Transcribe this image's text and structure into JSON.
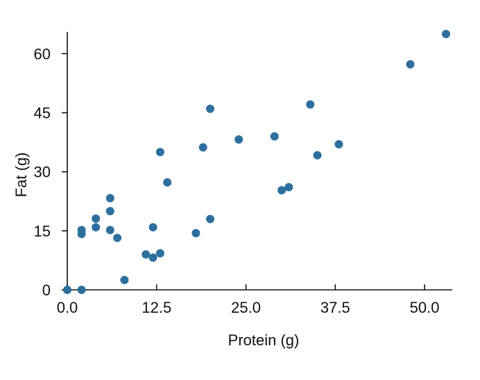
{
  "chart_data": {
    "type": "scatter",
    "title": "",
    "xlabel": "Protein (g)",
    "ylabel": "Fat (g)",
    "xlim": [
      0,
      53
    ],
    "ylim": [
      0,
      65
    ],
    "x_ticks": [
      0,
      12.5,
      25,
      37.5,
      50
    ],
    "x_tick_labels": [
      "0.0",
      "12.5",
      "25.0",
      "37.5",
      "50.0"
    ],
    "y_ticks": [
      0,
      15,
      30,
      45,
      60
    ],
    "y_tick_labels": [
      "0",
      "15",
      "30",
      "45",
      "60"
    ],
    "grid": false,
    "legend": "none",
    "marker_color": "#2e6f9e",
    "points": [
      {
        "x": 0,
        "y": 0
      },
      {
        "x": 2,
        "y": 0
      },
      {
        "x": 2,
        "y": 14.2
      },
      {
        "x": 2,
        "y": 15.2
      },
      {
        "x": 4,
        "y": 15.9
      },
      {
        "x": 4,
        "y": 18.1
      },
      {
        "x": 6,
        "y": 15.2
      },
      {
        "x": 6,
        "y": 20.0
      },
      {
        "x": 6,
        "y": 23.3
      },
      {
        "x": 7,
        "y": 13.2
      },
      {
        "x": 8,
        "y": 2.5
      },
      {
        "x": 11,
        "y": 9.0
      },
      {
        "x": 12,
        "y": 8.2
      },
      {
        "x": 12,
        "y": 15.9
      },
      {
        "x": 13,
        "y": 9.3
      },
      {
        "x": 13,
        "y": 35.0
      },
      {
        "x": 14,
        "y": 27.3
      },
      {
        "x": 18,
        "y": 14.4
      },
      {
        "x": 19,
        "y": 36.2
      },
      {
        "x": 20,
        "y": 46.0
      },
      {
        "x": 20,
        "y": 18.0
      },
      {
        "x": 24,
        "y": 38.2
      },
      {
        "x": 29,
        "y": 39.0
      },
      {
        "x": 30,
        "y": 25.3
      },
      {
        "x": 31,
        "y": 26.1
      },
      {
        "x": 34,
        "y": 47.1
      },
      {
        "x": 35,
        "y": 34.2
      },
      {
        "x": 38,
        "y": 37.0
      },
      {
        "x": 48,
        "y": 57.3
      },
      {
        "x": 53,
        "y": 65.0
      }
    ]
  }
}
